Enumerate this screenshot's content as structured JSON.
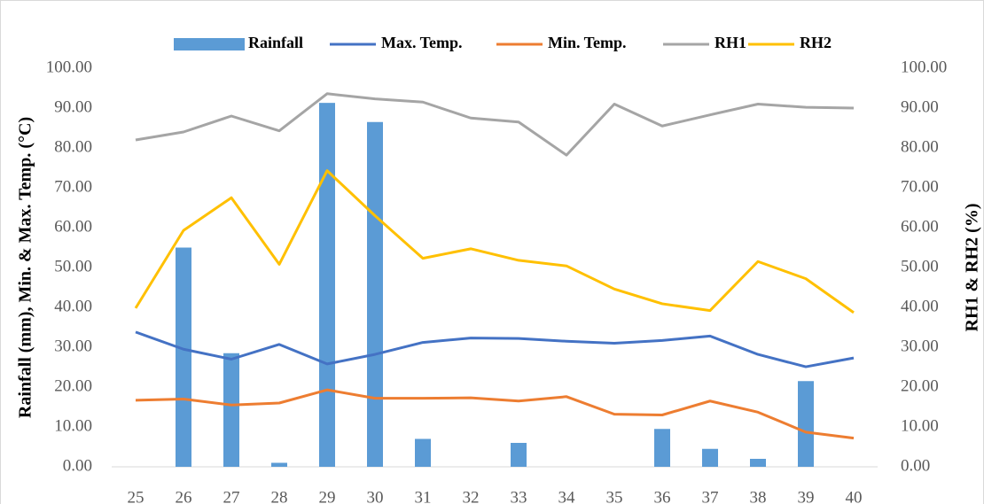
{
  "chart_data": {
    "type": "bar-line",
    "categories": [
      "25",
      "26",
      "27",
      "28",
      "29",
      "30",
      "31",
      "32",
      "33",
      "34",
      "35",
      "36",
      "37",
      "38",
      "39",
      "40"
    ],
    "series": [
      {
        "name": "Rainfall",
        "type": "bar",
        "color": "#5b9bd5",
        "values": [
          0,
          55,
          28.5,
          1,
          91.3,
          86.5,
          7,
          0,
          6,
          0,
          0,
          9.5,
          4.5,
          2,
          21.5,
          0
        ]
      },
      {
        "name": "Max. Temp.",
        "type": "line",
        "color": "#4472c4",
        "values": [
          33.8,
          29.5,
          27,
          30.7,
          25.8,
          28.2,
          31.2,
          32.3,
          32.2,
          31.5,
          31,
          31.7,
          32.8,
          28.2,
          25.1,
          27.3
        ]
      },
      {
        "name": "Min. Temp.",
        "type": "line",
        "color": "#ed7d31",
        "values": [
          16.7,
          17,
          15.5,
          16,
          19.3,
          17.2,
          17.2,
          17.3,
          16.5,
          17.6,
          13.2,
          13,
          16.5,
          13.7,
          8.7,
          7.2
        ]
      },
      {
        "name": "RH1",
        "type": "line",
        "color": "#a5a5a5",
        "axis": "y2",
        "values": [
          82,
          84,
          88,
          84.3,
          93.6,
          92.3,
          91.5,
          87.5,
          86.5,
          78.2,
          91,
          85.5,
          88.3,
          91,
          90.2,
          90
        ]
      },
      {
        "name": "RH2",
        "type": "line",
        "color": "#ffc000",
        "axis": "y2",
        "values": [
          39.8,
          59.3,
          67.5,
          50.8,
          74.3,
          63,
          52.3,
          54.7,
          51.8,
          50.4,
          44.6,
          40.9,
          39.2,
          51.5,
          47.2,
          38.7
        ]
      }
    ],
    "ylabel": "Rainfall (mm), Min. & Max. Temp. (°C)",
    "y2label": "RH1 & RH2 (%)",
    "ylim": [
      0,
      100
    ],
    "yticks": [
      {
        "value": 0,
        "label": "0.00"
      },
      {
        "value": 10,
        "label": "10.00"
      },
      {
        "value": 20,
        "label": "20.00"
      },
      {
        "value": 30,
        "label": "30.00"
      },
      {
        "value": 40,
        "label": "40.00"
      },
      {
        "value": 50,
        "label": "50.00"
      },
      {
        "value": 60,
        "label": "60.00"
      },
      {
        "value": 70,
        "label": "70.00"
      },
      {
        "value": 80,
        "label": "80.00"
      },
      {
        "value": 90,
        "label": "90.00"
      },
      {
        "value": 100,
        "label": "100.00"
      }
    ],
    "y2lim": [
      0,
      100
    ],
    "y2ticks": [
      {
        "value": 0,
        "label": "0.00"
      },
      {
        "value": 10,
        "label": "10.00"
      },
      {
        "value": 20,
        "label": "20.00"
      },
      {
        "value": 30,
        "label": "30.00"
      },
      {
        "value": 40,
        "label": "40.00"
      },
      {
        "value": 50,
        "label": "50.00"
      },
      {
        "value": 60,
        "label": "60.00"
      },
      {
        "value": 70,
        "label": "70.00"
      },
      {
        "value": 80,
        "label": "80.00"
      },
      {
        "value": 90,
        "label": "90.00"
      },
      {
        "value": 100,
        "label": "100.00"
      }
    ],
    "grid": false,
    "legend": "top"
  }
}
